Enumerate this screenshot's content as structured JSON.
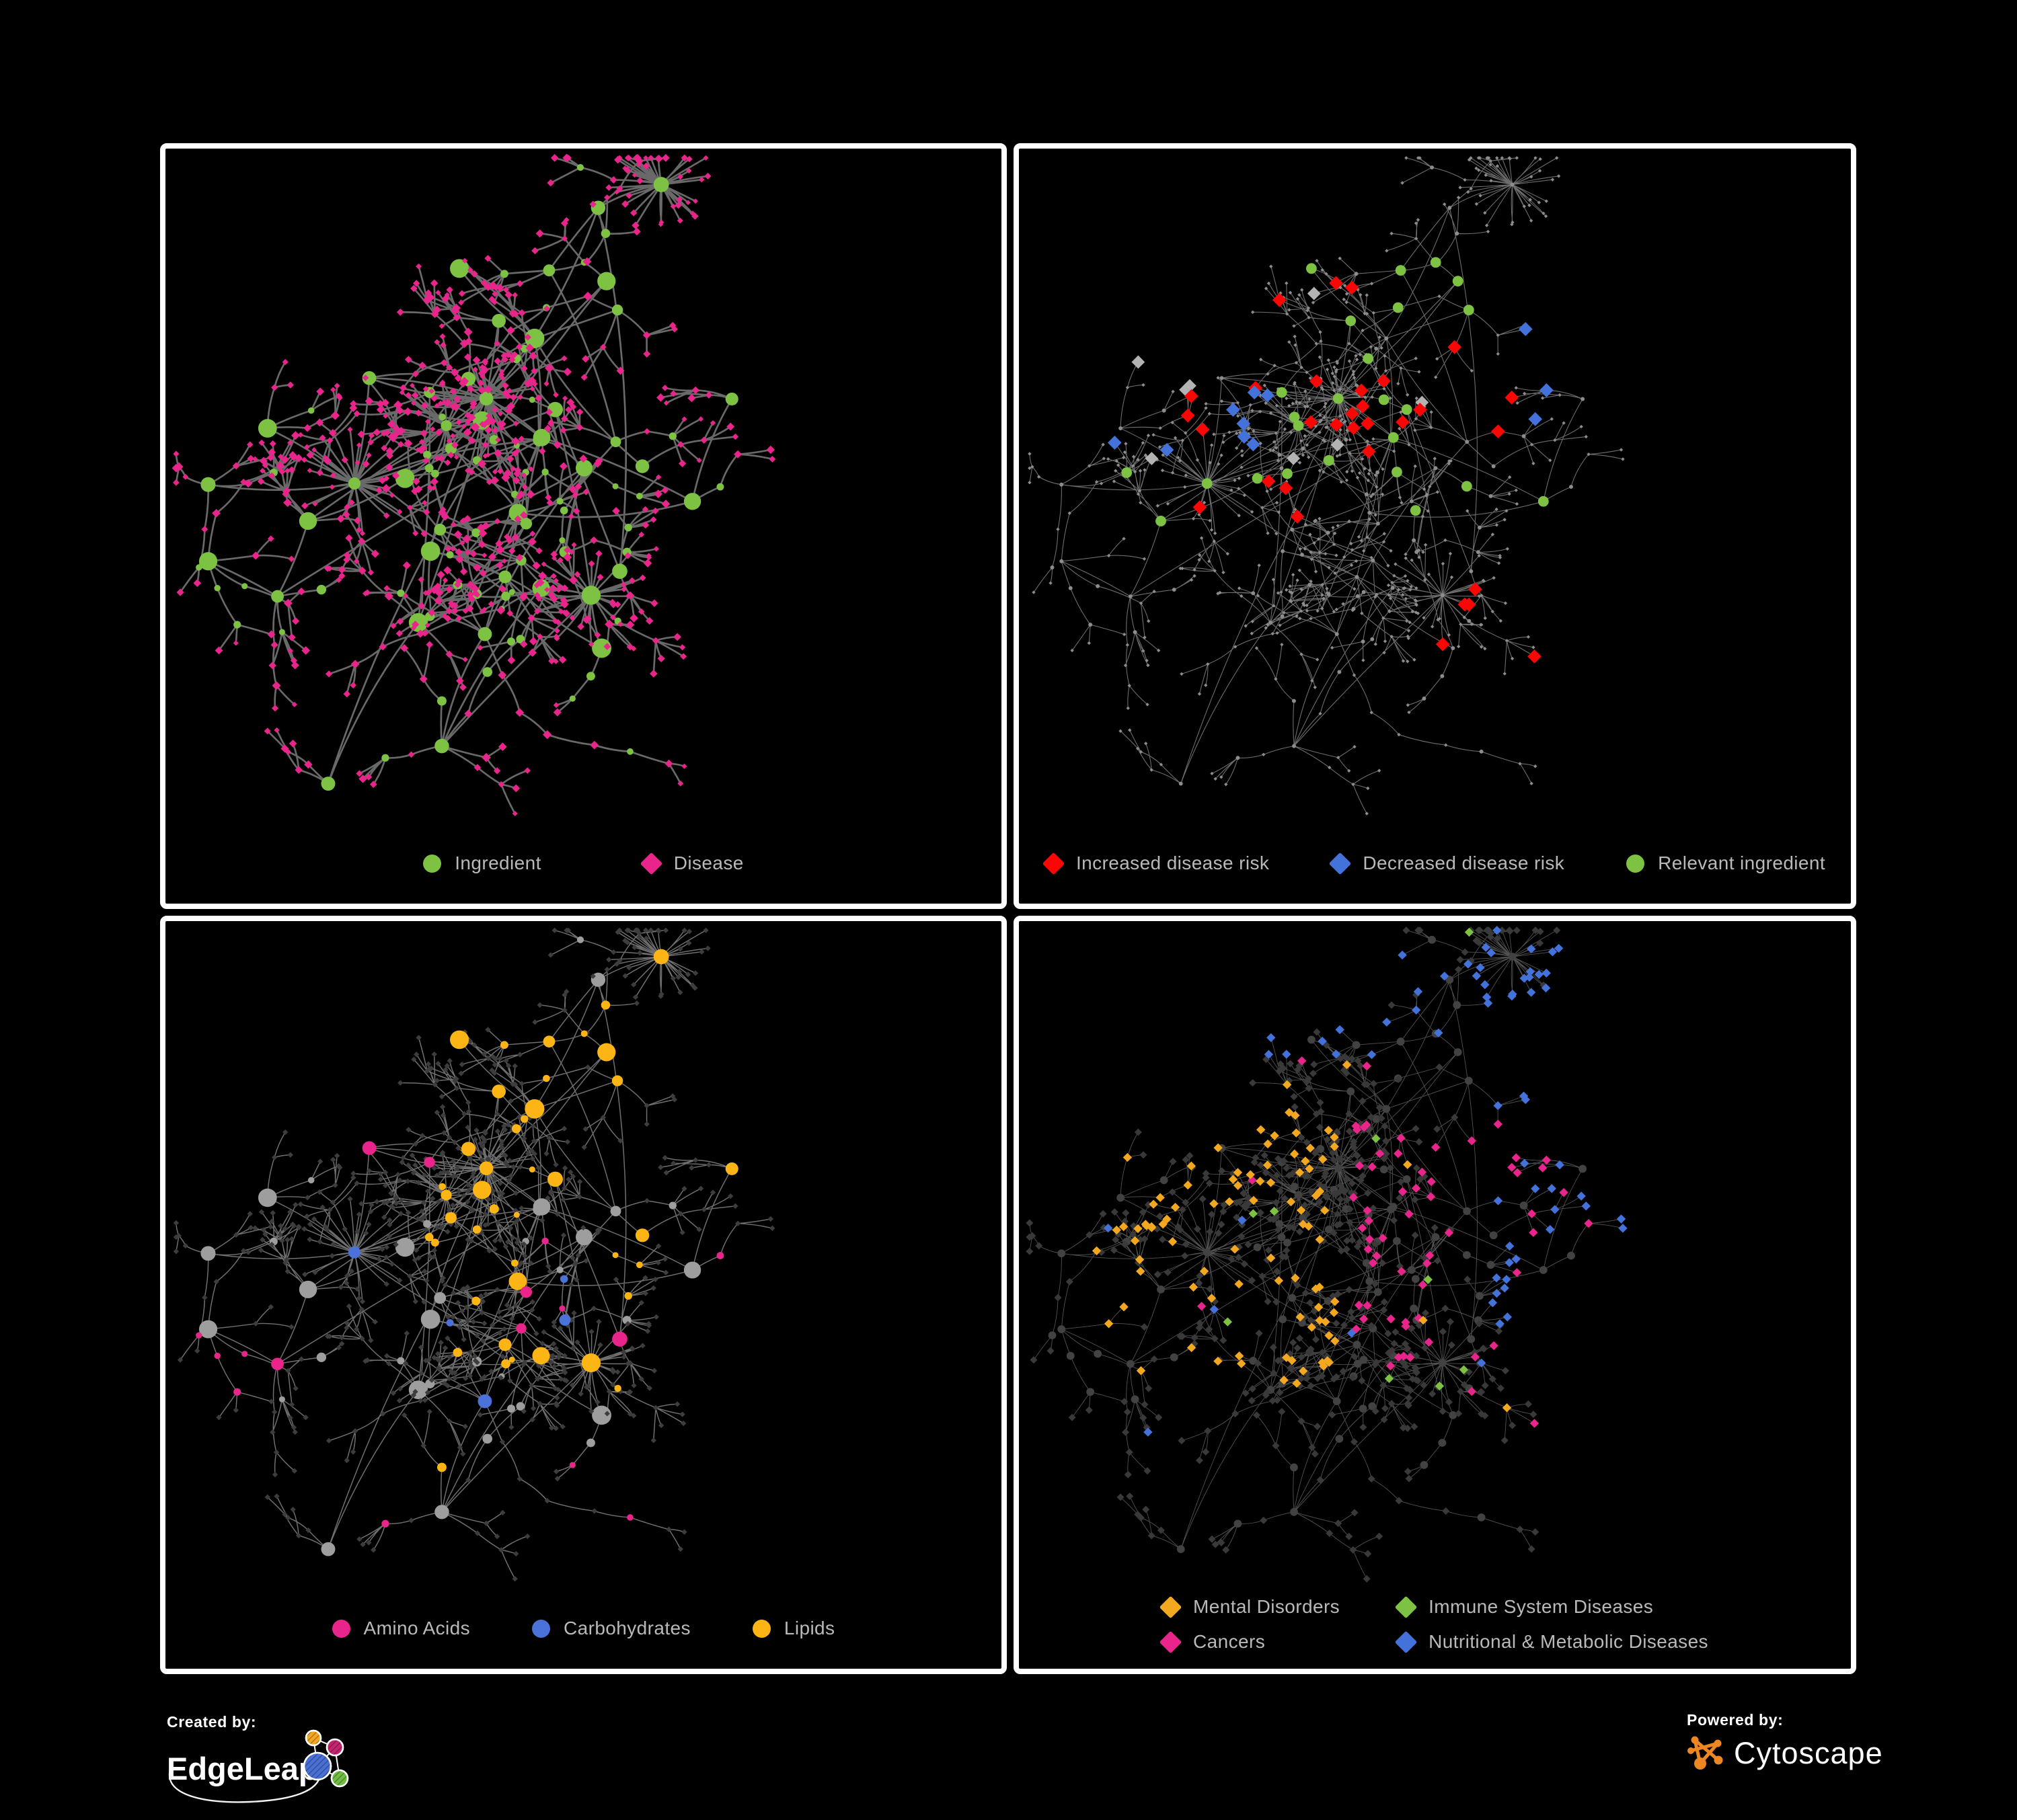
{
  "figure": {
    "background": "#000000",
    "panel_border_color": "#ffffff",
    "legend_text_color": "#b9b9b9"
  },
  "panels": [
    {
      "id": "ingredient-disease",
      "legend": [
        {
          "shape": "circle",
          "color": "#7dc242",
          "label": "Ingredient"
        },
        {
          "shape": "diamond",
          "color": "#e9258c",
          "label": "Disease"
        }
      ]
    },
    {
      "id": "disease-risk",
      "legend": [
        {
          "shape": "diamond",
          "color": "#fb0505",
          "label": "Increased disease risk"
        },
        {
          "shape": "diamond",
          "color": "#4472db",
          "label": "Decreased disease risk"
        },
        {
          "shape": "circle",
          "color": "#7dc242",
          "label": "Relevant ingredient"
        }
      ]
    },
    {
      "id": "nutrient-classes",
      "legend": [
        {
          "shape": "circle",
          "color": "#e9258c",
          "label": "Amino Acids"
        },
        {
          "shape": "circle",
          "color": "#4a72d9",
          "label": "Carbohydrates"
        },
        {
          "shape": "circle",
          "color": "#fdb515",
          "label": "Lipids"
        }
      ]
    },
    {
      "id": "disease-categories",
      "legend": [
        {
          "shape": "diamond",
          "color": "#f3a81f",
          "label": "Mental Disorders"
        },
        {
          "shape": "diamond",
          "color": "#7dc242",
          "label": "Immune System Diseases"
        },
        {
          "shape": "diamond",
          "color": "#e9258c",
          "label": "Cancers"
        },
        {
          "shape": "diamond",
          "color": "#4472db",
          "label": "Nutritional & Metabolic Diseases"
        }
      ]
    }
  ],
  "footer": {
    "created_by_label": "Created by:",
    "created_by_name": "EdgeLeap",
    "powered_by_label": "Powered by:",
    "powered_by_name": "Cytoscape",
    "cytoscape_brand_color": "#ee8722",
    "edgeleap_logo_colors": [
      "#f5a623",
      "#c4256f",
      "#4a6fd4",
      "#72bd44"
    ]
  },
  "network": {
    "seed": 20,
    "hubs": 46,
    "extra_links": 14,
    "tendrils": 8,
    "bursts": 5,
    "panels": [
      {
        "edge": {
          "color": "#696969",
          "width": 2.7,
          "opacity": 1
        },
        "base": {
          "circle": {
            "color": "#7dc242"
          },
          "diamond": {
            "color": "#e9258c"
          }
        },
        "hl_seed": 11,
        "highlights": []
      },
      {
        "edge": {
          "color": "#6d6d6d",
          "width": 1.1,
          "opacity": 1
        },
        "base": {
          "circle": {
            "color": "#8d8d8d",
            "size": 3
          },
          "diamond": {
            "color": "#8d8d8d",
            "size": 2.7
          }
        },
        "hl_seed": 12,
        "highlights": [
          {
            "target": "diamond",
            "color": "#fb0505",
            "count": 26,
            "size": 10.5,
            "region": [
              0.2,
              0.18,
              0.6,
              0.55
            ]
          },
          {
            "target": "diamond",
            "color": "#fb0505",
            "count": 5,
            "size": 10.5,
            "region": [
              0.5,
              0.62,
              0.95,
              0.88
            ]
          },
          {
            "target": "diamond",
            "color": "#4472db",
            "count": 8,
            "size": 10.5,
            "region": [
              0.06,
              0.22,
              0.3,
              0.45
            ]
          },
          {
            "target": "diamond",
            "color": "#4472db",
            "count": 3,
            "size": 10.5,
            "region": [
              0.6,
              0.25,
              0.95,
              0.42
            ]
          },
          {
            "target": "diamond",
            "color": "#b3b3b3",
            "count": 8,
            "size": 10,
            "region": [
              0.1,
              0.2,
              0.6,
              0.55
            ]
          },
          {
            "target": "circle",
            "color": "#7dc242",
            "count": 25,
            "size": 8,
            "region": [
              0.08,
              0.14,
              0.66,
              0.56
            ]
          }
        ]
      },
      {
        "edge": {
          "color": "#828282",
          "width": 1.5,
          "opacity": 0.85
        },
        "base": {
          "circle": {
            "color": "#9e9e9e"
          },
          "diamond": {
            "color": "#3d3d3d",
            "size": 4.2
          }
        },
        "hl_seed": 13,
        "highlights": [
          {
            "target": "circle",
            "color": "#fdb515",
            "count": 36,
            "region": [
              0.33,
              0.12,
              0.68,
              0.4
            ]
          },
          {
            "target": "circle",
            "color": "#fdb515",
            "count": 16,
            "region": [
              0.3,
              0.4,
              0.75,
              0.72
            ]
          },
          {
            "target": "circle",
            "color": "#fdb515",
            "count": 8
          },
          {
            "target": "circle",
            "color": "#4a72d9",
            "count": 12,
            "region": [
              0.33,
              0.12,
              0.62,
              0.42
            ]
          },
          {
            "target": "circle",
            "color": "#4a72d9",
            "count": 5
          },
          {
            "target": "circle",
            "color": "#e9258c",
            "count": 16
          }
        ]
      },
      {
        "edge": {
          "color": "#a5a5a5",
          "width": 0.9,
          "opacity": 0.5
        },
        "base": {
          "circle": {
            "color": "#424242",
            "size": 6
          },
          "diamond": {
            "color": "#393939",
            "size": 5.6
          }
        },
        "hl_seed": 14,
        "highlights": [
          {
            "target": "diamond",
            "color": "#f3a81f",
            "count": 88,
            "size": 6.8,
            "region": [
              0.02,
              0.24,
              0.38,
              0.72
            ]
          },
          {
            "target": "diamond",
            "color": "#f3a81f",
            "count": 6,
            "size": 6.8
          },
          {
            "target": "diamond",
            "color": "#e9258c",
            "count": 55,
            "size": 6.8,
            "region": [
              0.4,
              0.28,
              0.72,
              0.67
            ]
          },
          {
            "target": "diamond",
            "color": "#e9258c",
            "count": 8,
            "size": 6.8
          },
          {
            "target": "diamond",
            "color": "#4472db",
            "count": 42,
            "size": 6.8,
            "region": [
              0.55,
              0.03,
              0.99,
              0.6
            ]
          },
          {
            "target": "diamond",
            "color": "#4472db",
            "count": 14,
            "size": 6.8,
            "region": [
              0.15,
              0.02,
              0.55,
              0.2
            ]
          },
          {
            "target": "diamond",
            "color": "#4472db",
            "count": 8,
            "size": 6.8
          },
          {
            "target": "diamond",
            "color": "#7dc242",
            "count": 9,
            "size": 6.8
          }
        ]
      }
    ]
  }
}
